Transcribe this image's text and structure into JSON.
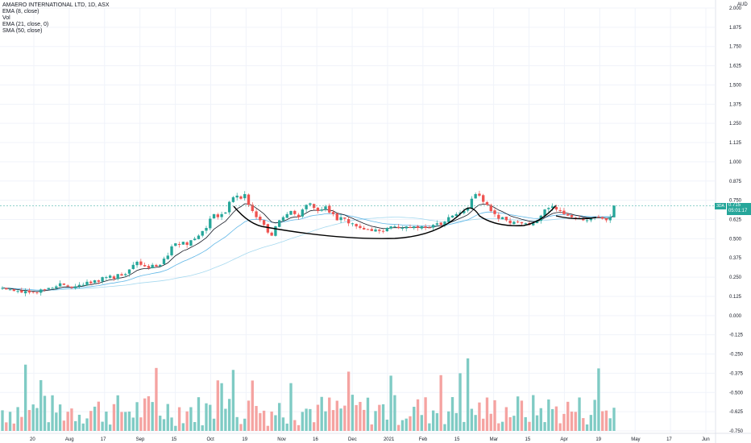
{
  "legend": {
    "title": "AMAERO INTERNATIONAL LTD, 1D, ASX",
    "ema8": "EMA (8, close)",
    "vol": "Vol",
    "ema21": "EMA (21, close, 0)",
    "sma50": "SMA (50, close)"
  },
  "currency": "AUD",
  "price_badge": {
    "symbol": "3DA",
    "price": "0.715",
    "countdown": "05:01:17"
  },
  "colors": {
    "up": "#26a69a",
    "down": "#ef5350",
    "vol_up": "#7fcbc4",
    "vol_down": "#f5a3a1",
    "ema8": "#131722",
    "ema21": "#5fb6e6",
    "sma50": "#a6d9ef",
    "pattern": "#000000"
  },
  "chart_data": {
    "type": "candlestick",
    "title": "AMAERO INTERNATIONAL LTD, 1D, ASX",
    "y_axis_ticks": [
      "2.000",
      "1.875",
      "1.750",
      "1.625",
      "1.500",
      "1.375",
      "1.250",
      "1.125",
      "1.000",
      "0.875",
      "0.750",
      "0.625",
      "0.500",
      "0.375",
      "0.250",
      "0.125",
      "0.000",
      "-0.125",
      "-0.250",
      "-0.375",
      "-0.500",
      "-0.625",
      "-0.750"
    ],
    "ylim": [
      -0.75,
      2.0
    ],
    "x_axis_ticks": [
      "20",
      "Aug",
      "17",
      "Sep",
      "15",
      "Oct",
      "19",
      "Nov",
      "16",
      "Dec",
      "2021",
      "Feb",
      "15",
      "Mar",
      "15",
      "Apr",
      "19",
      "May",
      "17",
      "Jun"
    ],
    "last_price": 0.715,
    "closes": [
      0.18,
      0.17,
      0.17,
      0.16,
      0.16,
      0.15,
      0.16,
      0.15,
      0.15,
      0.15,
      0.17,
      0.17,
      0.18,
      0.18,
      0.19,
      0.21,
      0.2,
      0.19,
      0.18,
      0.19,
      0.2,
      0.2,
      0.22,
      0.21,
      0.23,
      0.22,
      0.25,
      0.25,
      0.26,
      0.24,
      0.27,
      0.26,
      0.27,
      0.3,
      0.33,
      0.35,
      0.33,
      0.32,
      0.31,
      0.33,
      0.32,
      0.33,
      0.37,
      0.39,
      0.45,
      0.47,
      0.46,
      0.48,
      0.46,
      0.49,
      0.5,
      0.52,
      0.55,
      0.57,
      0.63,
      0.66,
      0.64,
      0.66,
      0.67,
      0.74,
      0.77,
      0.78,
      0.76,
      0.79,
      0.72,
      0.68,
      0.64,
      0.62,
      0.59,
      0.54,
      0.52,
      0.58,
      0.62,
      0.64,
      0.66,
      0.68,
      0.66,
      0.64,
      0.69,
      0.72,
      0.73,
      0.7,
      0.68,
      0.69,
      0.71,
      0.67,
      0.66,
      0.62,
      0.64,
      0.63,
      0.6,
      0.6,
      0.58,
      0.57,
      0.56,
      0.56,
      0.55,
      0.56,
      0.55,
      0.55,
      0.57,
      0.58,
      0.58,
      0.57,
      0.57,
      0.58,
      0.57,
      0.58,
      0.57,
      0.58,
      0.57,
      0.57,
      0.59,
      0.6,
      0.59,
      0.61,
      0.64,
      0.65,
      0.66,
      0.67,
      0.68,
      0.7,
      0.76,
      0.79,
      0.78,
      0.74,
      0.72,
      0.68,
      0.66,
      0.63,
      0.64,
      0.62,
      0.6,
      0.61,
      0.61,
      0.6,
      0.6,
      0.59,
      0.6,
      0.62,
      0.65,
      0.69,
      0.7,
      0.71,
      0.69,
      0.68,
      0.66,
      0.65,
      0.64,
      0.63,
      0.63,
      0.62,
      0.62,
      0.63,
      0.64,
      0.64,
      0.63,
      0.62,
      0.64,
      0.715
    ],
    "volume_note": "volume bars shown in lower pane"
  }
}
